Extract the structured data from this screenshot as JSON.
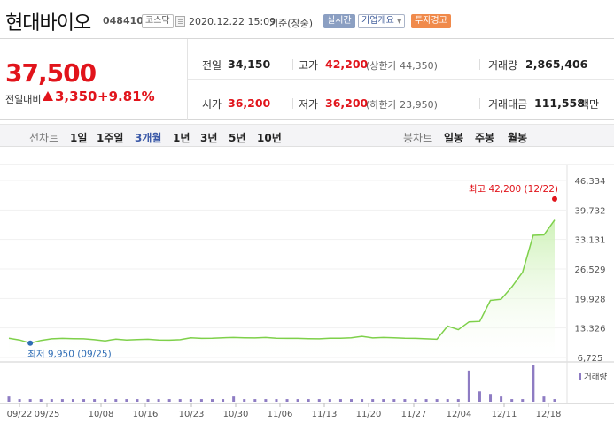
{
  "header": {
    "name": "현대바이오",
    "code": "048410",
    "market": "코스닥",
    "datetime": "2020.12.22 15:09",
    "standard": "기준(장중)",
    "realtime_btn": "실시간",
    "overview_btn": "기업개요",
    "warning_btn": "투자경고"
  },
  "summary": {
    "current_price": "37,500",
    "prev_label": "전일대비",
    "change": "3,350",
    "change_pct": "+9.81%",
    "prev_close_label": "전일",
    "prev_close": "34,150",
    "high_label": "고가",
    "high": "42,200",
    "upper_limit": "(상한가 44,350)",
    "volume_label": "거래량",
    "volume": "2,865,406",
    "open_label": "시가",
    "open": "36,200",
    "low_label": "저가",
    "low": "36,200",
    "lower_limit": "(하한가 23,950)",
    "amount_label": "거래대금",
    "amount": "111,558",
    "amount_unit": "백만"
  },
  "tabs": {
    "line_label": "선차트",
    "periods": [
      "1일",
      "1주일",
      "3개월",
      "1년",
      "3년",
      "5년",
      "10년"
    ],
    "active": "3개월",
    "candle_label": "봉차트",
    "candles": [
      "일봉",
      "주봉",
      "월봉"
    ]
  },
  "colors": {
    "up": "#e1141b",
    "line": "#7ed04a",
    "volume": "#8e7cc3",
    "low_marker": "#2f6db5"
  },
  "chart_data": {
    "type": "area",
    "y_ticks": [
      "46,334",
      "39,732",
      "33,131",
      "26,529",
      "19,928",
      "13,326",
      "6,725"
    ],
    "ylim": [
      6725,
      46334
    ],
    "x_ticks": [
      "09/22",
      "09/25",
      "10/08",
      "10/16",
      "10/23",
      "10/30",
      "11/06",
      "11/13",
      "11/20",
      "11/27",
      "12/04",
      "12/11",
      "12/18"
    ],
    "high_annotation": "최고 42,200 (12/22)",
    "low_annotation": "최저 9,950 (09/25)",
    "high_value": 42200,
    "low_value": 9950,
    "prices": [
      11050,
      10650,
      9950,
      10550,
      10900,
      11000,
      10950,
      10900,
      10700,
      10450,
      10850,
      10650,
      10750,
      10800,
      10650,
      10600,
      10700,
      11150,
      11000,
      11050,
      11150,
      11200,
      11150,
      11100,
      11200,
      11050,
      11000,
      11000,
      10950,
      10900,
      11050,
      11050,
      11150,
      11450,
      11100,
      11200,
      11150,
      11050,
      11000,
      10900,
      10800,
      13750,
      12950,
      14700,
      14800,
      19500,
      19750,
      22500,
      25800,
      34050,
      34150,
      37500
    ],
    "volume_label": "거래량",
    "volumes": [
      2,
      1,
      1,
      1,
      1,
      1,
      1,
      1,
      1,
      1,
      1,
      1,
      1,
      1,
      1,
      1,
      1,
      1,
      1,
      1,
      1,
      2,
      1,
      1,
      1,
      1,
      1,
      1,
      1,
      1,
      1,
      1,
      1,
      1,
      1,
      1,
      1,
      1,
      1,
      1,
      1,
      1,
      1,
      12,
      4,
      3,
      2,
      1,
      1,
      14,
      2,
      1
    ]
  }
}
